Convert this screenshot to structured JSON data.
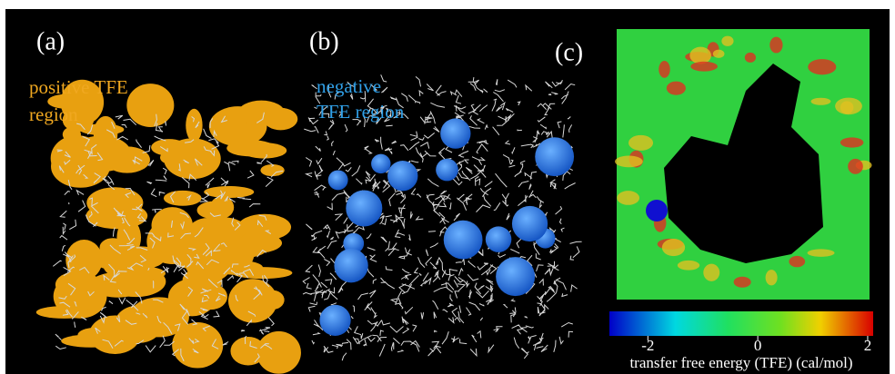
{
  "panels": [
    {
      "label": "(a)",
      "annotation": [
        "positive TFE",
        "region"
      ]
    },
    {
      "label": "(b)",
      "annotation": [
        "negative",
        "TFE region"
      ]
    },
    {
      "label": "(c)"
    }
  ],
  "colorbar": {
    "label": "transfer free energy (TFE)  (cal/mol)",
    "lim": [
      -2.7,
      2.1
    ],
    "ticks": [
      -2,
      0,
      2
    ]
  }
}
